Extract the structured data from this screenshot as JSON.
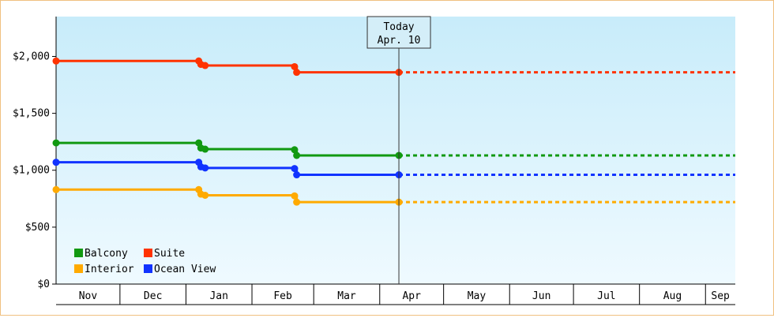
{
  "chart_data": {
    "type": "line",
    "title": "",
    "xlabel": "",
    "ylabel": "",
    "ylim": [
      0,
      2350
    ],
    "y_ticks": [
      0,
      500,
      1000,
      1500,
      2000
    ],
    "y_tick_labels": [
      "$0",
      "$500",
      "$1,000",
      "$1,500",
      "$2,000"
    ],
    "x_range": [
      "2019-11-01",
      "2020-09-15"
    ],
    "months": [
      {
        "label": "Nov",
        "start": "2019-11-01"
      },
      {
        "label": "Dec",
        "start": "2019-12-01"
      },
      {
        "label": "Jan",
        "start": "2020-01-01"
      },
      {
        "label": "Feb",
        "start": "2020-02-01"
      },
      {
        "label": "Mar",
        "start": "2020-03-01"
      },
      {
        "label": "Apr",
        "start": "2020-04-01"
      },
      {
        "label": "May",
        "start": "2020-05-01"
      },
      {
        "label": "Jun",
        "start": "2020-06-01"
      },
      {
        "label": "Jul",
        "start": "2020-07-01"
      },
      {
        "label": "Aug",
        "start": "2020-08-01"
      },
      {
        "label": "Sep",
        "start": "2020-09-01"
      }
    ],
    "today": {
      "date": "2020-04-10",
      "label_top": "Today",
      "label_bottom": "Apr. 10"
    },
    "legend_placement": "bottom-left",
    "grid": false,
    "series": [
      {
        "name": "Suite",
        "color": "#ff3300",
        "points": [
          [
            "2019-11-01",
            1960
          ],
          [
            "2020-01-07",
            1960
          ],
          [
            "2020-01-08",
            1930
          ],
          [
            "2020-01-10",
            1920
          ],
          [
            "2020-02-21",
            1910
          ],
          [
            "2020-02-22",
            1860
          ],
          [
            "2020-04-10",
            1860
          ]
        ]
      },
      {
        "name": "Balcony",
        "color": "#119911",
        "points": [
          [
            "2019-11-01",
            1240
          ],
          [
            "2020-01-07",
            1240
          ],
          [
            "2020-01-08",
            1195
          ],
          [
            "2020-01-10",
            1185
          ],
          [
            "2020-02-21",
            1180
          ],
          [
            "2020-02-22",
            1130
          ],
          [
            "2020-04-10",
            1130
          ]
        ]
      },
      {
        "name": "Ocean View",
        "color": "#1133ff",
        "points": [
          [
            "2019-11-01",
            1070
          ],
          [
            "2020-01-07",
            1070
          ],
          [
            "2020-01-08",
            1030
          ],
          [
            "2020-01-10",
            1020
          ],
          [
            "2020-02-21",
            1015
          ],
          [
            "2020-02-22",
            960
          ],
          [
            "2020-04-10",
            960
          ]
        ]
      },
      {
        "name": "Interior",
        "color": "#ffaa00",
        "points": [
          [
            "2019-11-01",
            830
          ],
          [
            "2020-01-07",
            830
          ],
          [
            "2020-01-08",
            790
          ],
          [
            "2020-01-10",
            780
          ],
          [
            "2020-02-21",
            775
          ],
          [
            "2020-02-22",
            720
          ],
          [
            "2020-04-10",
            720
          ]
        ]
      }
    ],
    "legend": [
      {
        "name": "Balcony",
        "color": "#119911"
      },
      {
        "name": "Suite",
        "color": "#ff3300"
      },
      {
        "name": "Interior",
        "color": "#ffaa00"
      },
      {
        "name": "Ocean View",
        "color": "#1133ff"
      }
    ]
  }
}
